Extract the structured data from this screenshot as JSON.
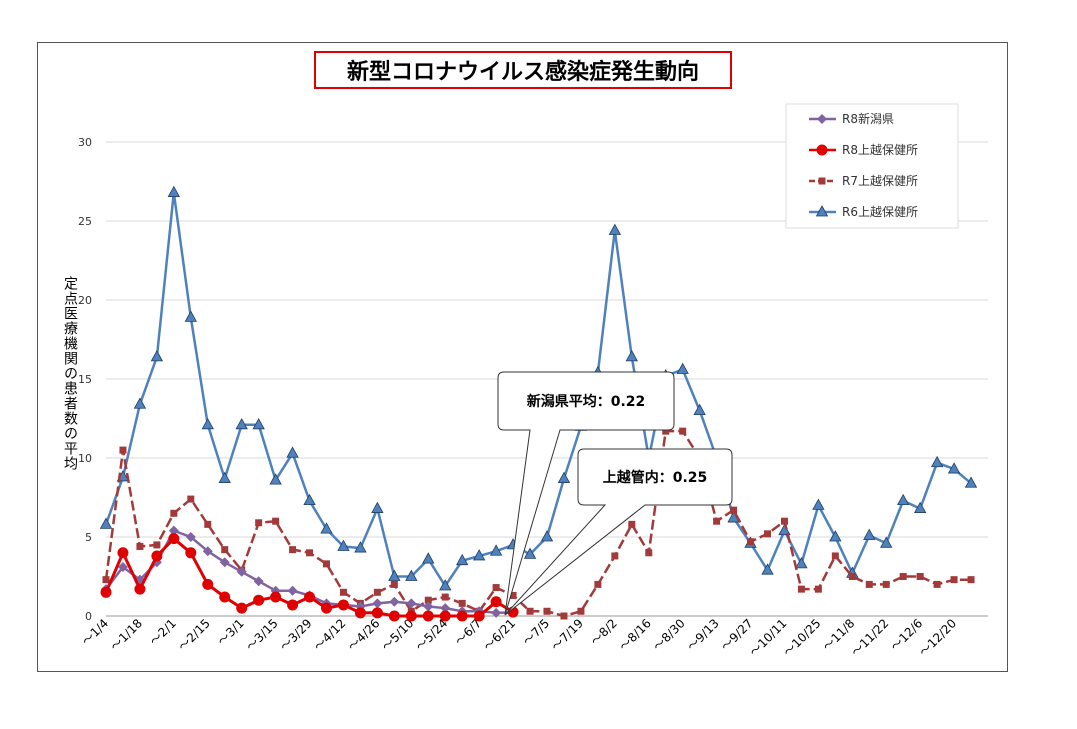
{
  "chart_data": {
    "type": "line",
    "title": "新型コロナウイルス感染症発生動向",
    "ylabel": "定点医療機関の患者数の平均",
    "ylim": [
      0,
      30
    ],
    "yticks": [
      "0",
      "5",
      "10",
      "15",
      "20",
      "25",
      "30"
    ],
    "x_count": 53,
    "xtick_labels": [
      "～1/4",
      "～1/18",
      "～2/1",
      "～2/15",
      "～3/1",
      "～3/15",
      "～3/29",
      "～4/12",
      "～4/26",
      "～5/10",
      "～5/24",
      "～6/7",
      "～6/21",
      "～7/5",
      "～7/19",
      "～8/2",
      "～8/16",
      "～8/30",
      "～9/13",
      "～9/27",
      "～10/11",
      "～10/25",
      "～11/8",
      "～11/22",
      "～12/6",
      "～12/20"
    ],
    "grid": "horizontal",
    "legend_position": "top-right",
    "series": [
      {
        "name": "R8新潟県",
        "color": "#8064a2",
        "marker": "diamond",
        "values": [
          1.7,
          3.1,
          2.3,
          3.4,
          5.4,
          5.0,
          4.1,
          3.4,
          2.8,
          2.2,
          1.6,
          1.6,
          1.3,
          0.8,
          0.7,
          0.6,
          0.8,
          0.9,
          0.8,
          0.6,
          0.5,
          0.3,
          0.3,
          0.2,
          0.22
        ]
      },
      {
        "name": "R8上越保健所",
        "color": "#e00000",
        "marker": "circle",
        "values": [
          1.5,
          4.0,
          1.7,
          3.8,
          4.9,
          4.0,
          2.0,
          1.2,
          0.5,
          1.0,
          1.2,
          0.7,
          1.2,
          0.5,
          0.7,
          0.2,
          0.2,
          0.0,
          0.0,
          0.0,
          0.0,
          0.0,
          0.0,
          0.9,
          0.25
        ]
      },
      {
        "name": "R7上越保健所",
        "color": "#a33a3a",
        "marker": "square",
        "dashed": true,
        "values": [
          2.3,
          10.5,
          4.4,
          4.5,
          6.5,
          7.4,
          5.8,
          4.2,
          2.9,
          5.9,
          6.0,
          4.2,
          4.0,
          3.3,
          1.5,
          0.8,
          1.5,
          2.0,
          0.3,
          1.0,
          1.2,
          0.8,
          0.3,
          1.8,
          1.3,
          0.3,
          0.3,
          0.0,
          0.3,
          2.0,
          3.8,
          5.8,
          4.0,
          11.7,
          11.7,
          10.0,
          6.0,
          6.7,
          4.7,
          5.2,
          6.0,
          1.7,
          1.7,
          3.8,
          2.5,
          2.0,
          2.0,
          2.5,
          2.5,
          2.0,
          2.3,
          2.3
        ]
      },
      {
        "name": "R6上越保健所",
        "color": "#4f81bd",
        "marker": "triangle",
        "values": [
          5.8,
          8.8,
          13.4,
          16.4,
          26.8,
          18.9,
          12.1,
          8.7,
          12.1,
          12.1,
          8.6,
          10.3,
          7.3,
          5.5,
          4.4,
          4.3,
          6.8,
          2.5,
          2.5,
          3.6,
          1.9,
          3.5,
          3.8,
          4.1,
          4.5,
          3.9,
          5.0,
          8.7,
          12.0,
          15.4,
          24.4,
          16.4,
          10.0,
          15.2,
          15.6,
          13.0,
          10.0,
          6.2,
          4.6,
          2.9,
          5.4,
          3.3,
          7.0,
          5.0,
          2.7,
          5.1,
          4.6,
          7.3,
          6.8,
          9.7,
          9.3,
          8.4
        ]
      }
    ],
    "annotations": [
      "新潟県平均：0.22",
      "上越管内：0.25"
    ]
  }
}
